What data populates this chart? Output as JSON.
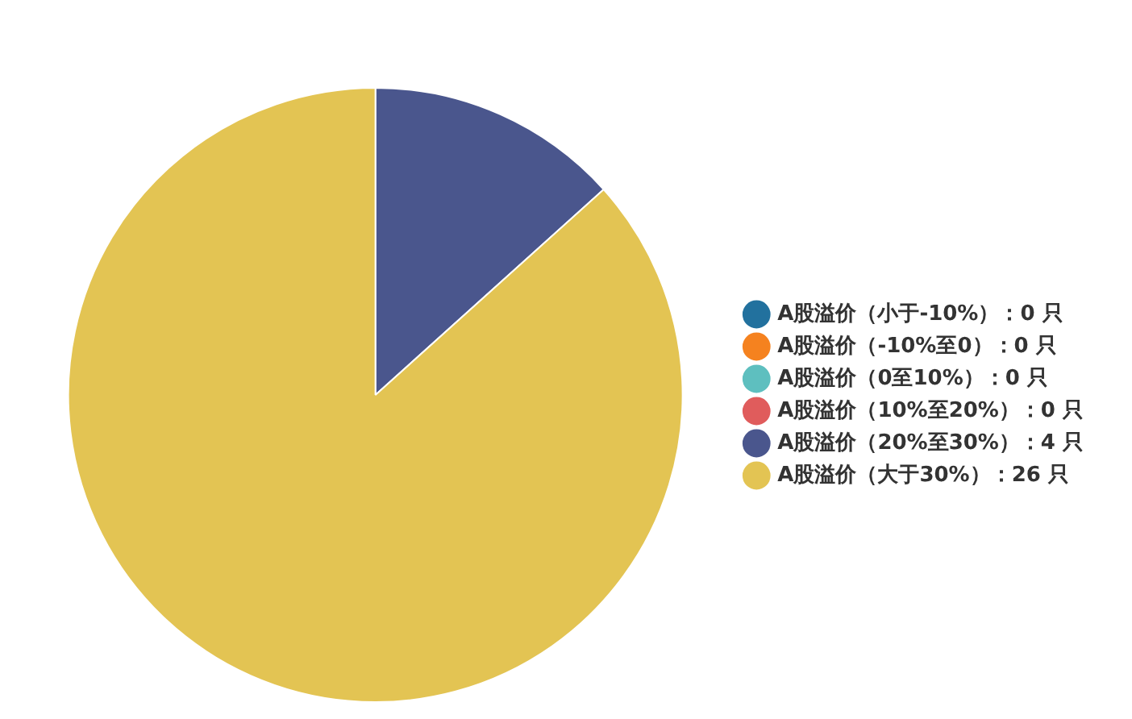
{
  "chart_data": {
    "type": "pie",
    "categories": [
      "A股溢价（小于-10%）：0 只",
      "A股溢价（-10%至0）：0 只",
      "A股溢价（0至10%）：0 只",
      "A股溢价（10%至20%）：0 只",
      "A股溢价（20%至30%）：4 只",
      "A股溢价（大于30%）：26 只"
    ],
    "values": [
      0,
      0,
      0,
      0,
      4,
      26
    ],
    "colors": [
      "#22719e",
      "#f5821f",
      "#5ebfbf",
      "#e05c5c",
      "#4a568d",
      "#e3c453"
    ],
    "legend": "right"
  }
}
